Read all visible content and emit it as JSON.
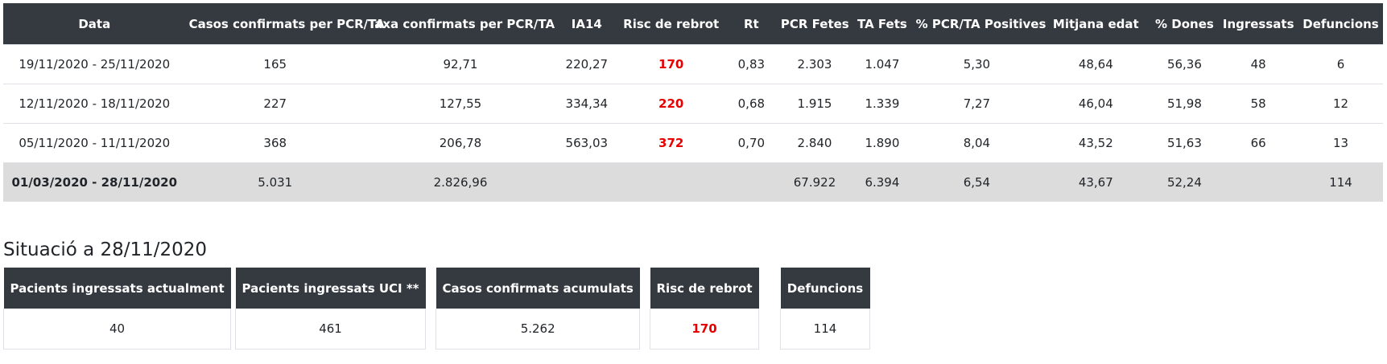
{
  "table": {
    "headers": [
      "Data",
      "Casos confirmats per PCR/TA",
      "Taxa confirmats per PCR/TA",
      "IA14",
      "Risc de rebrot",
      "Rt",
      "PCR Fetes",
      "TA Fets",
      "% PCR/TA Positives",
      "Mitjana edat",
      "% Dones",
      "Ingressats",
      "Defuncions"
    ],
    "rows": [
      [
        "19/11/2020 - 25/11/2020",
        "165",
        "92,71",
        "220,27",
        "170",
        "0,83",
        "2.303",
        "1.047",
        "5,30",
        "48,64",
        "56,36",
        "48",
        "6"
      ],
      [
        "12/11/2020 - 18/11/2020",
        "227",
        "127,55",
        "334,34",
        "220",
        "0,68",
        "1.915",
        "1.339",
        "7,27",
        "46,04",
        "51,98",
        "58",
        "12"
      ],
      [
        "05/11/2020 - 11/11/2020",
        "368",
        "206,78",
        "563,03",
        "372",
        "0,70",
        "2.840",
        "1.890",
        "8,04",
        "43,52",
        "51,63",
        "66",
        "13"
      ]
    ],
    "total": [
      "01/03/2020 - 28/11/2020",
      "5.031",
      "2.826,96",
      "",
      "",
      "",
      "67.922",
      "6.394",
      "6,54",
      "43,67",
      "52,24",
      "",
      "114"
    ]
  },
  "situation": {
    "title": "Situació a 28/11/2020",
    "cards": [
      {
        "label": "Pacients ingressats actualment",
        "value": "40"
      },
      {
        "label": "Pacients ingressats UCI **",
        "value": "461"
      },
      {
        "label": "Casos confirmats acumulats",
        "value": "5.262"
      },
      {
        "label": "Risc de rebrot",
        "value": "170"
      },
      {
        "label": "Defuncions",
        "value": "114"
      }
    ]
  },
  "colors": {
    "header_bg": "#343a40",
    "risk": "#e60000",
    "total_bg": "#dcdcdc"
  }
}
